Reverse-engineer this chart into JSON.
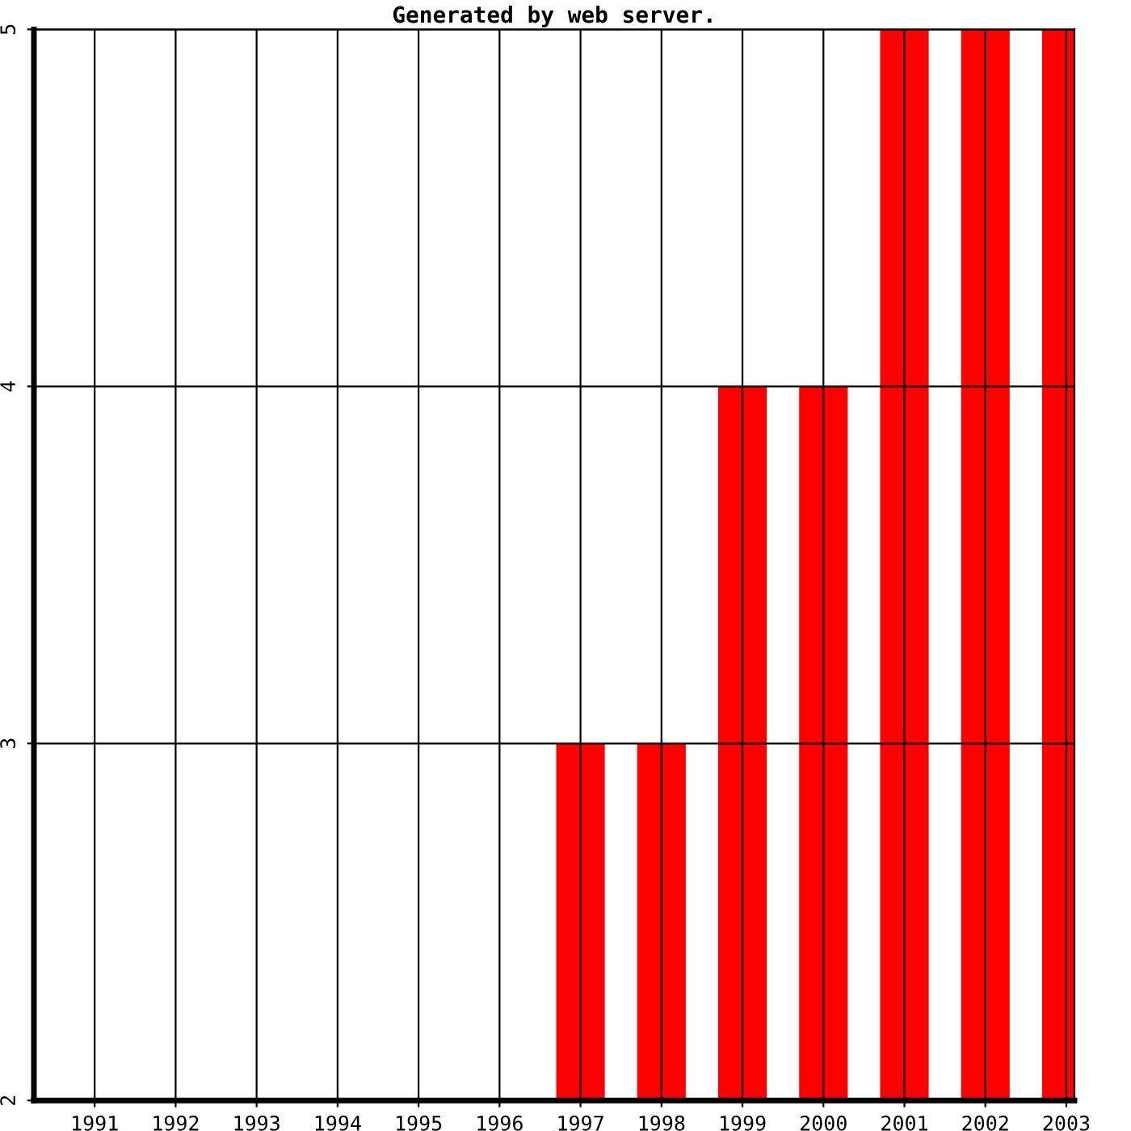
{
  "chart_data": {
    "type": "bar",
    "title": "Generated by web server.",
    "categories": [
      "1991",
      "1992",
      "1993",
      "1994",
      "1995",
      "1996",
      "1997",
      "1998",
      "1999",
      "2000",
      "2001",
      "2002",
      "2003"
    ],
    "values": [
      null,
      null,
      null,
      null,
      null,
      null,
      3,
      3,
      4,
      4,
      5,
      5,
      5
    ],
    "color": "#ff0000",
    "ylim": [
      2,
      5
    ],
    "yticks": [
      2,
      3,
      4,
      5
    ],
    "grid": true,
    "legend": false
  }
}
